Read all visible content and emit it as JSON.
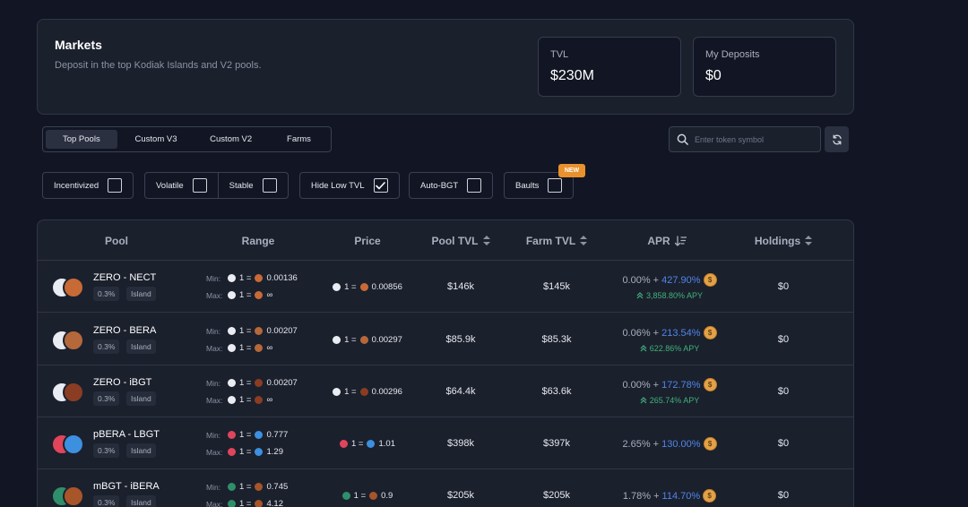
{
  "header": {
    "title": "Markets",
    "subtitle": "Deposit in the top Kodiak Islands and V2 pools.",
    "tvl": {
      "label": "TVL",
      "value": "$230M"
    },
    "deposits": {
      "label": "My Deposits",
      "value": "$0"
    }
  },
  "tabs": [
    {
      "label": "Top Pools",
      "active": true
    },
    {
      "label": "Custom V3",
      "active": false
    },
    {
      "label": "Custom V2",
      "active": false
    },
    {
      "label": "Farms",
      "active": false
    }
  ],
  "search": {
    "placeholder": "Enter token symbol"
  },
  "filters": {
    "incentivized": {
      "label": "Incentivized",
      "checked": false
    },
    "volatile": {
      "label": "Volatile",
      "checked": false
    },
    "stable": {
      "label": "Stable",
      "checked": false
    },
    "hide_low_tvl": {
      "label": "Hide Low TVL",
      "checked": true
    },
    "auto_bgt": {
      "label": "Auto-BGT",
      "checked": false
    },
    "baults": {
      "label": "Baults",
      "checked": false,
      "badge": "NEW"
    }
  },
  "table": {
    "columns": {
      "pool": "Pool",
      "range": "Range",
      "price": "Price",
      "pool_tvl": "Pool TVL",
      "farm_tvl": "Farm TVL",
      "apr": "APR",
      "holdings": "Holdings"
    },
    "range_labels": {
      "min": "Min:",
      "max": "Max:"
    },
    "rows": [
      {
        "pair": "ZERO - NECT",
        "fee": "0.3%",
        "type": "Island",
        "min": "0.00136",
        "max": "∞",
        "price": "0.00856",
        "pool_tvl": "$146k",
        "farm_tvl": "$145k",
        "apr_base": "0.00% +",
        "apr_boost": "427.90%",
        "apy": "3,858.80% APY",
        "holdings": "$0",
        "colors": {
          "a": "#e9ecf2",
          "b": "#c86a36"
        }
      },
      {
        "pair": "ZERO - BERA",
        "fee": "0.3%",
        "type": "Island",
        "min": "0.00207",
        "max": "∞",
        "price": "0.00297",
        "pool_tvl": "$85.9k",
        "farm_tvl": "$85.3k",
        "apr_base": "0.06% +",
        "apr_boost": "213.54%",
        "apy": "622.86% APY",
        "holdings": "$0",
        "colors": {
          "a": "#e9ecf2",
          "b": "#b5683a"
        }
      },
      {
        "pair": "ZERO - iBGT",
        "fee": "0.3%",
        "type": "Island",
        "min": "0.00207",
        "max": "∞",
        "price": "0.00296",
        "pool_tvl": "$64.4k",
        "farm_tvl": "$63.6k",
        "apr_base": "0.00% +",
        "apr_boost": "172.78%",
        "apy": "265.74% APY",
        "holdings": "$0",
        "colors": {
          "a": "#e9ecf2",
          "b": "#8a3d22"
        }
      },
      {
        "pair": "pBERA - LBGT",
        "fee": "0.3%",
        "type": "Island",
        "min": "0.777",
        "max": "1.29",
        "price": "1.01",
        "pool_tvl": "$398k",
        "farm_tvl": "$397k",
        "apr_base": "2.65% +",
        "apr_boost": "130.00%",
        "apy": "",
        "holdings": "$0",
        "colors": {
          "a": "#e0455b",
          "b": "#3d8fe0"
        }
      },
      {
        "pair": "mBGT - iBERA",
        "fee": "0.3%",
        "type": "Island",
        "min": "0.745",
        "max": "4.12",
        "price": "0.9",
        "pool_tvl": "$205k",
        "farm_tvl": "$205k",
        "apr_base": "1.78% +",
        "apr_boost": "114.70%",
        "apy": "",
        "holdings": "$0",
        "colors": {
          "a": "#2f8f6a",
          "b": "#a8552a"
        }
      }
    ]
  },
  "colors": {
    "background": "#121624",
    "card": "#1b202d",
    "accent_blue": "#4f86e8",
    "apy_green": "#3fb37a",
    "badge_orange": "#e8912d"
  },
  "icons": [
    "search-icon",
    "refresh-icon",
    "sort-icon",
    "sort-desc-icon",
    "check-icon",
    "reward-coin-icon",
    "double-chevron-up-icon"
  ]
}
